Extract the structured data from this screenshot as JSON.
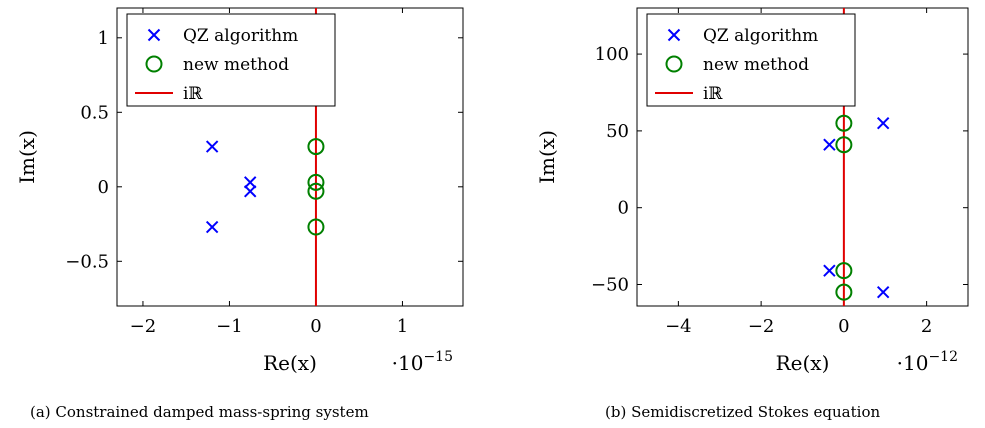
{
  "chart_data": [
    {
      "type": "scatter",
      "caption": "(a) Constrained damped mass-spring system",
      "xlabel": "Re(x)",
      "ylabel": "Im(x)",
      "x_scale_base": "·10",
      "x_scale_exp": "−15",
      "xlim": [
        -2.3,
        1.7
      ],
      "ylim": [
        -0.8,
        1.2
      ],
      "xticks": [
        -2,
        -1,
        0,
        1
      ],
      "xtick_labels": [
        "−2",
        "−1",
        "0",
        "1"
      ],
      "yticks": [
        -0.5,
        0,
        0.5,
        1
      ],
      "ytick_labels": [
        "−0.5",
        "0",
        "0.5",
        "1"
      ],
      "legend_position": "top-left",
      "grid": false,
      "series": [
        {
          "name": "QZ algorithm",
          "marker": "x",
          "color": "#0000ff",
          "points": [
            [
              -1.2,
              0.27
            ],
            [
              -1.2,
              -0.27
            ],
            [
              -0.76,
              0.03
            ],
            [
              -0.76,
              -0.03
            ]
          ]
        },
        {
          "name": "new method",
          "marker": "o",
          "color": "#008000",
          "points": [
            [
              0,
              0.27
            ],
            [
              0,
              0.03
            ],
            [
              0,
              -0.03
            ],
            [
              0,
              -0.27
            ]
          ]
        },
        {
          "name": "iℝ",
          "marker": "line",
          "color": "#e00000",
          "x": 0,
          "y_range": [
            -0.8,
            1.2
          ]
        }
      ]
    },
    {
      "type": "scatter",
      "caption": "(b) Semidiscretized Stokes equation",
      "xlabel": "Re(x)",
      "ylabel": "Im(x)",
      "x_scale_base": "·10",
      "x_scale_exp": "−12",
      "xlim": [
        -5,
        3
      ],
      "ylim": [
        -64,
        130
      ],
      "xticks": [
        -4,
        -2,
        0,
        2
      ],
      "xtick_labels": [
        "−4",
        "−2",
        "0",
        "2"
      ],
      "yticks": [
        -50,
        0,
        50,
        100
      ],
      "ytick_labels": [
        "−50",
        "0",
        "50",
        "100"
      ],
      "legend_position": "top-left",
      "grid": false,
      "series": [
        {
          "name": "QZ algorithm",
          "marker": "x",
          "color": "#0000ff",
          "points": [
            [
              -0.35,
              41
            ],
            [
              0.95,
              55
            ],
            [
              -0.35,
              -41
            ],
            [
              0.95,
              -55
            ]
          ]
        },
        {
          "name": "new method",
          "marker": "o",
          "color": "#008000",
          "points": [
            [
              0,
              55
            ],
            [
              0,
              41
            ],
            [
              0,
              -41
            ],
            [
              0,
              -55
            ]
          ]
        },
        {
          "name": "iℝ",
          "marker": "line",
          "color": "#e00000",
          "x": 0,
          "y_range": [
            -64,
            130
          ]
        }
      ]
    }
  ]
}
